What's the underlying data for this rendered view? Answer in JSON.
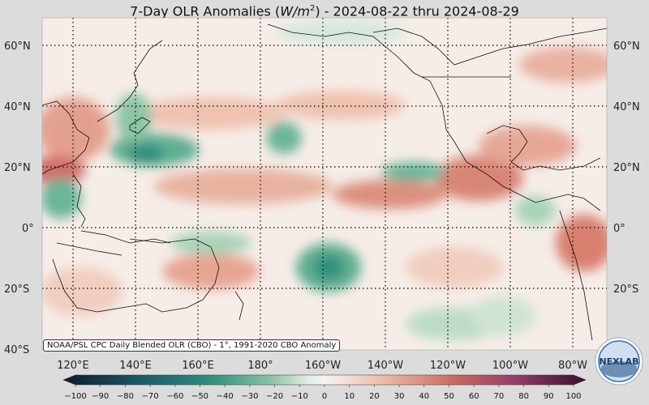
{
  "title_prefix": "7-Day OLR Anomalies (",
  "title_unit_main": "W/m",
  "title_unit_exp": "2",
  "title_suffix": ") - 2024-08-22 thru 2024-08-29",
  "source_note": "NOAA/PSL CPC Daily Blended OLR (CBO) - 1°, 1991-2020 CBO Anomaly",
  "logo_text": "NEXLAB",
  "lat_labels": [
    "60°N",
    "40°N",
    "20°N",
    "0°",
    "20°S",
    "40°S"
  ],
  "lon_labels": [
    "120°E",
    "140°E",
    "160°E",
    "180°",
    "160°W",
    "140°W",
    "120°W",
    "100°W",
    "80°W"
  ],
  "colorbar": {
    "ticks": [
      "−100",
      "−90",
      "−80",
      "−70",
      "−60",
      "−50",
      "−40",
      "−30",
      "−20",
      "−10",
      "0",
      "10",
      "20",
      "30",
      "40",
      "50",
      "60",
      "70",
      "80",
      "90",
      "100"
    ],
    "colors": {
      "strong_negative": "#1a2f4a",
      "negative": "#2f8f7c",
      "weak_negative": "#a8d3b8",
      "neutral": "#f7f3f0",
      "weak_positive": "#efc2b0",
      "positive": "#c76a5e",
      "strong_positive": "#4a1235"
    }
  }
}
